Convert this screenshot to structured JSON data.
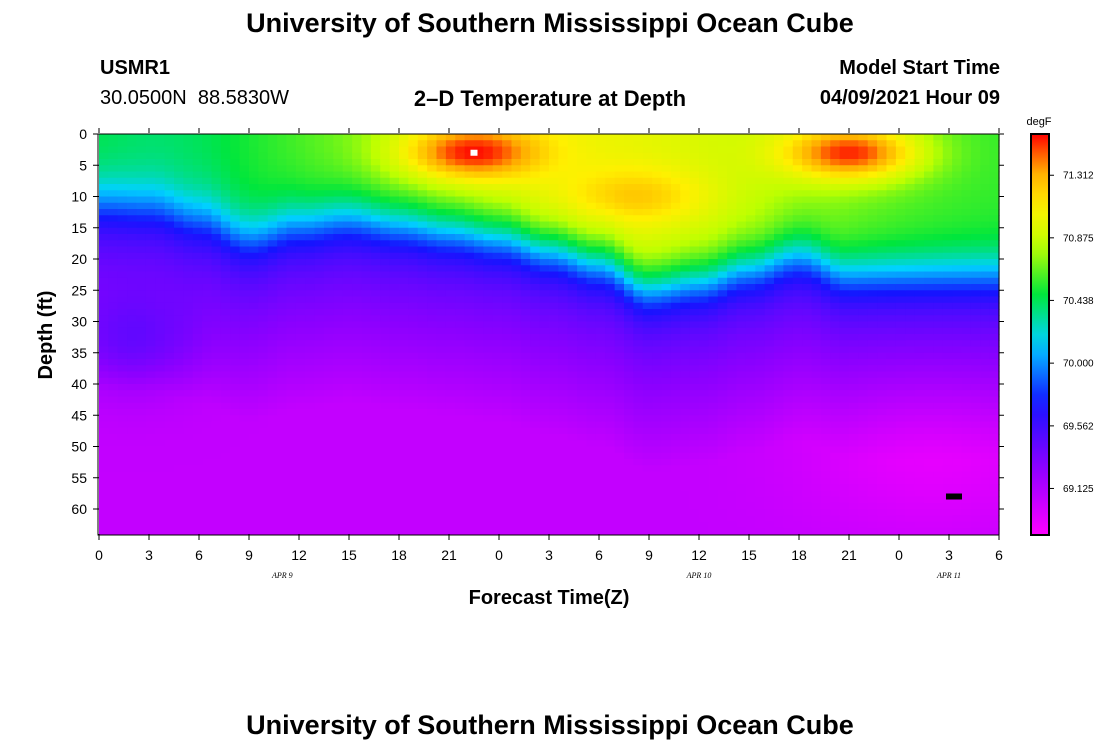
{
  "title_top": "University of Southern Mississippi Ocean Cube",
  "title_bottom": "University of Southern Mississippi Ocean Cube",
  "station": {
    "id": "USMR1",
    "lat": "30.0500N",
    "lon": "88.5830W"
  },
  "plot_title": "2–D Temperature at Depth",
  "model_start": {
    "label": "Model Start Time",
    "value": "04/09/2021 Hour 09"
  },
  "chart_data": {
    "type": "heatmap",
    "title": "2–D Temperature at Depth",
    "xlabel": "Forecast Time(Z)",
    "ylabel": "Depth (ft)",
    "x_range_hours": [
      0,
      54
    ],
    "y_range_ft": [
      0,
      64
    ],
    "x_ticks": [
      "0",
      "3",
      "6",
      "9",
      "12",
      "15",
      "18",
      "21",
      "0",
      "3",
      "6",
      "9",
      "12",
      "15",
      "18",
      "21",
      "0",
      "3",
      "6"
    ],
    "y_ticks": [
      "0",
      "5",
      "10",
      "15",
      "20",
      "25",
      "30",
      "35",
      "40",
      "45",
      "50",
      "55",
      "60"
    ],
    "date_labels": [
      {
        "text": "APR  9",
        "hour": 11
      },
      {
        "text": "APR  10",
        "hour": 36
      },
      {
        "text": "APR  11",
        "hour": 51
      }
    ],
    "colorbar": {
      "unit": "degF",
      "range": [
        68.8,
        71.6
      ],
      "ticks": [
        "71.312",
        "70.875",
        "70.438",
        "70.000",
        "69.562",
        "69.125"
      ],
      "tick_values": [
        71.312,
        70.875,
        70.438,
        70.0,
        69.562,
        69.125
      ]
    },
    "thermocline_depth_ft": [
      {
        "hour": 0,
        "depth": 10.5
      },
      {
        "hour": 3,
        "depth": 11
      },
      {
        "hour": 6,
        "depth": 13
      },
      {
        "hour": 9,
        "depth": 16
      },
      {
        "hour": 12,
        "depth": 14
      },
      {
        "hour": 15,
        "depth": 13
      },
      {
        "hour": 18,
        "depth": 14
      },
      {
        "hour": 21,
        "depth": 15
      },
      {
        "hour": 24,
        "depth": 16
      },
      {
        "hour": 27,
        "depth": 18
      },
      {
        "hour": 30,
        "depth": 20
      },
      {
        "hour": 33,
        "depth": 24
      },
      {
        "hour": 36,
        "depth": 23
      },
      {
        "hour": 39,
        "depth": 21
      },
      {
        "hour": 42,
        "depth": 19
      },
      {
        "hour": 45,
        "depth": 22
      },
      {
        "hour": 48,
        "depth": 22
      },
      {
        "hour": 51,
        "depth": 22
      },
      {
        "hour": 54,
        "depth": 22
      }
    ],
    "surface_warm_cores": [
      {
        "hour": 22.5,
        "depth": 3,
        "temp": 71.6
      },
      {
        "hour": 45,
        "depth": 3,
        "temp": 71.55
      },
      {
        "hour": 32,
        "depth": 10,
        "temp": 71.25
      }
    ],
    "markers": [
      {
        "hour": 22.5,
        "depth": 3,
        "color": "#ffffff"
      },
      {
        "hour": 51.3,
        "depth": 58,
        "color": "#000000"
      }
    ]
  }
}
